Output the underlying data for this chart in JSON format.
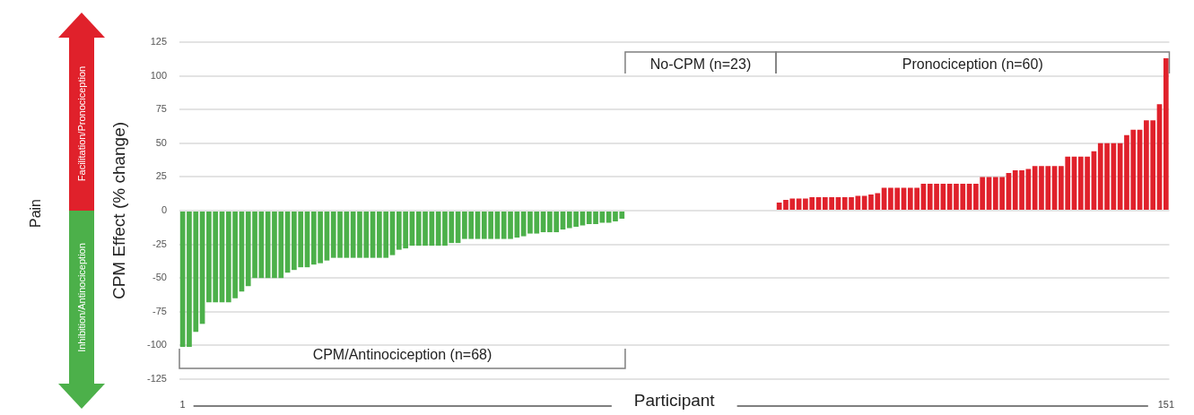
{
  "chart_data": {
    "type": "bar",
    "ylabel": "CPM Effect (% change)",
    "xlabel": "Participant",
    "categories": [
      "1",
      null,
      null,
      null,
      null,
      null,
      null,
      null,
      null,
      null,
      null,
      null,
      null,
      null,
      null,
      null,
      null,
      null,
      null,
      null,
      null,
      null,
      null,
      null,
      null,
      null,
      null,
      null,
      null,
      null,
      null,
      null,
      null,
      null,
      null,
      null,
      null,
      null,
      null,
      null,
      null,
      null,
      null,
      null,
      null,
      null,
      null,
      null,
      null,
      null,
      null,
      null,
      null,
      null,
      null,
      null,
      null,
      null,
      null,
      null,
      null,
      null,
      null,
      null,
      null,
      null,
      null,
      null,
      null,
      null,
      null,
      null,
      null,
      null,
      null,
      null,
      null,
      null,
      null,
      null,
      null,
      null,
      null,
      null,
      null,
      null,
      null,
      null,
      null,
      null,
      null,
      null,
      null,
      null,
      null,
      null,
      null,
      null,
      null,
      null,
      null,
      null,
      null,
      null,
      null,
      null,
      null,
      null,
      null,
      null,
      null,
      null,
      null,
      null,
      null,
      null,
      null,
      null,
      null,
      null,
      null,
      null,
      null,
      null,
      null,
      null,
      null,
      null,
      null,
      null,
      null,
      null,
      null,
      null,
      null,
      null,
      null,
      null,
      null,
      null,
      null,
      null,
      null,
      null,
      null,
      null,
      null,
      null,
      null,
      null,
      "151"
    ],
    "series": [
      {
        "color": "#4cb04a",
        "values": [
          -101,
          -101,
          -90,
          -84,
          -68,
          -68,
          -68,
          -68,
          -65,
          -60,
          -56,
          -50,
          -50,
          -50,
          -50,
          -50,
          -46,
          -44,
          -42,
          -42,
          -40,
          -39,
          -37,
          -35,
          -35,
          -35,
          -35,
          -35,
          -35,
          -35,
          -35,
          -35,
          -33,
          -29,
          -28,
          -26,
          -26,
          -26,
          -26,
          -26,
          -26,
          -24,
          -24,
          -21,
          -21,
          -21,
          -21,
          -21,
          -21,
          -21,
          -21,
          -20,
          -19,
          -17,
          -17,
          -16,
          -16,
          -16,
          -14,
          -13,
          -12,
          -11,
          -10,
          -10,
          -9,
          -9,
          -8,
          -6,
          null,
          null,
          null,
          null,
          null,
          null,
          null,
          null,
          null,
          null,
          null,
          null,
          null,
          null,
          null,
          null,
          null,
          null,
          null,
          null,
          null,
          null,
          null,
          null,
          null,
          null,
          null,
          null,
          null,
          null,
          null,
          null,
          null,
          null,
          null,
          null,
          null,
          null,
          null,
          null,
          null,
          null,
          null,
          null,
          null,
          null,
          null,
          null,
          null,
          null,
          null,
          null,
          null,
          null,
          null,
          null,
          null,
          null,
          null,
          null,
          null,
          null,
          null,
          null,
          null,
          null,
          null,
          null,
          null,
          null,
          null,
          null,
          null,
          null,
          null,
          null,
          null,
          null,
          null,
          null,
          null,
          null,
          null
        ]
      },
      {
        "color": "#4cb04a",
        "values": [
          null,
          null,
          null,
          null,
          null,
          null,
          null,
          null,
          null,
          null,
          null,
          null,
          null,
          null,
          null,
          null,
          null,
          null,
          null,
          null,
          null,
          null,
          null,
          null,
          null,
          null,
          null,
          null,
          null,
          null,
          null,
          null,
          null,
          null,
          null,
          null,
          null,
          null,
          null,
          null,
          null,
          null,
          null,
          null,
          null,
          null,
          null,
          null,
          null,
          null,
          null,
          null,
          null,
          null,
          null,
          null,
          null,
          null,
          null,
          null,
          null,
          null,
          null,
          null,
          null,
          null,
          null,
          null,
          0,
          0,
          0,
          0,
          0,
          0,
          0,
          0,
          0,
          0,
          0,
          0,
          0,
          0,
          0,
          0,
          0,
          0,
          0,
          0,
          0,
          0,
          0,
          null,
          null,
          null,
          null,
          null,
          null,
          null,
          null,
          null,
          null,
          null,
          null,
          null,
          null,
          null,
          null,
          null,
          null,
          null,
          null,
          null,
          null,
          null,
          null,
          null,
          null,
          null,
          null,
          null,
          null,
          null,
          null,
          null,
          null,
          null,
          null,
          null,
          null,
          null,
          null,
          null,
          null,
          null,
          null,
          null,
          null,
          null,
          null,
          null,
          null,
          null,
          null,
          null,
          null,
          null,
          null,
          null,
          null,
          null,
          null
        ]
      },
      {
        "color": "#e0212b",
        "values": [
          null,
          null,
          null,
          null,
          null,
          null,
          null,
          null,
          null,
          null,
          null,
          null,
          null,
          null,
          null,
          null,
          null,
          null,
          null,
          null,
          null,
          null,
          null,
          null,
          null,
          null,
          null,
          null,
          null,
          null,
          null,
          null,
          null,
          null,
          null,
          null,
          null,
          null,
          null,
          null,
          null,
          null,
          null,
          null,
          null,
          null,
          null,
          null,
          null,
          null,
          null,
          null,
          null,
          null,
          null,
          null,
          null,
          null,
          null,
          null,
          null,
          null,
          null,
          null,
          null,
          null,
          null,
          null,
          null,
          null,
          null,
          null,
          null,
          null,
          null,
          null,
          null,
          null,
          null,
          null,
          null,
          null,
          null,
          null,
          null,
          null,
          null,
          null,
          null,
          null,
          null,
          6,
          8,
          9,
          9,
          9,
          10,
          10,
          10,
          10,
          10,
          10,
          10,
          11,
          11,
          12,
          13,
          17,
          17,
          17,
          17,
          17,
          17,
          20,
          20,
          20,
          20,
          20,
          20,
          20,
          20,
          20,
          25,
          25,
          25,
          25,
          28,
          30,
          30,
          31,
          33,
          33,
          33,
          33,
          33,
          40,
          40,
          40,
          40,
          44,
          50,
          50,
          50,
          50,
          56,
          60,
          60,
          67,
          67,
          79,
          113
        ]
      }
    ],
    "ylim": [
      -125,
      125
    ],
    "yticks": [
      -125,
      -100,
      -75,
      -50,
      -25,
      0,
      25,
      50,
      75,
      100,
      125
    ],
    "grid": "y",
    "legend": false,
    "annotations": [
      "CPM/Antinociception (n=68)",
      "No-CPM (n=23)",
      "Pronociception (n=60)",
      "Facilitation/Pronociception",
      "Inhibition/Antinociception",
      "Pain"
    ]
  }
}
